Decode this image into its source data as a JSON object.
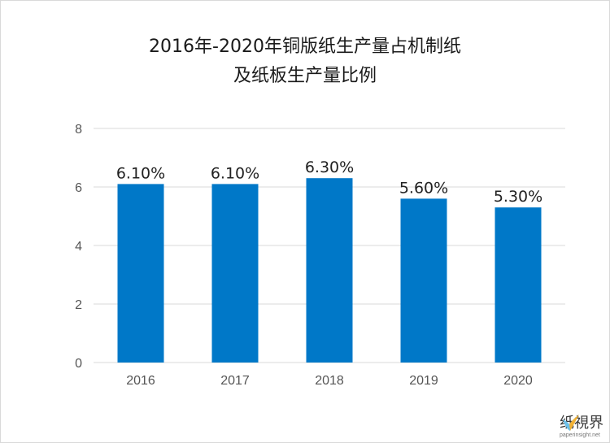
{
  "title_line1": "2016年-2020年铜版纸生产量占机制纸",
  "title_line2": "及纸板生产量比例",
  "watermark": {
    "name": "纸視界",
    "url": "paperinsight.net"
  },
  "colors": {
    "bar": "#0078c8",
    "grid": "#d9d9d9"
  },
  "chart_data": {
    "type": "bar",
    "title": "2016年-2020年铜版纸生产量占机制纸及纸板生产量比例",
    "categories": [
      "2016",
      "2017",
      "2018",
      "2019",
      "2020"
    ],
    "values": [
      6.1,
      6.1,
      6.3,
      5.6,
      5.3
    ],
    "data_labels": [
      "6.10%",
      "6.10%",
      "6.30%",
      "5.60%",
      "5.30%"
    ],
    "yticks": [
      "0",
      "2",
      "4",
      "6",
      "8"
    ],
    "ylim": [
      0,
      8
    ],
    "grid": true,
    "xlabel": "",
    "ylabel": ""
  }
}
